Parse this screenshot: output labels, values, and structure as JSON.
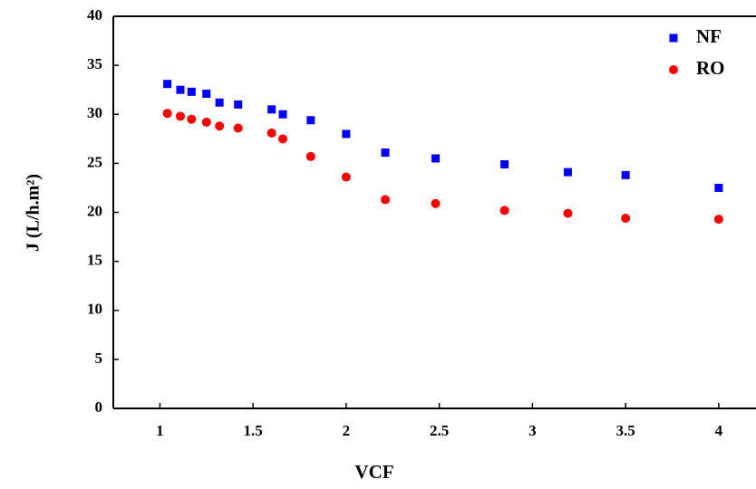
{
  "chart_data": {
    "type": "scatter",
    "x_label": "VCF",
    "y_label": "J (L/h.m²)",
    "x": [
      1.04,
      1.11,
      1.17,
      1.25,
      1.32,
      1.42,
      1.6,
      1.66,
      1.81,
      2.0,
      2.21,
      2.48,
      2.85,
      3.19,
      3.5,
      4.0
    ],
    "series": [
      {
        "name": "NF",
        "color": "#0000ff",
        "marker": "square",
        "values": [
          33.1,
          32.5,
          32.3,
          32.1,
          31.2,
          31.0,
          30.5,
          30.0,
          29.4,
          28.0,
          26.1,
          25.5,
          24.9,
          24.1,
          23.8,
          22.5
        ]
      },
      {
        "name": "RO",
        "color": "#ff0000",
        "marker": "circle",
        "values": [
          30.1,
          29.8,
          29.5,
          29.2,
          28.8,
          28.6,
          28.1,
          27.5,
          25.7,
          23.6,
          21.3,
          20.9,
          20.2,
          19.9,
          19.4,
          19.3
        ]
      }
    ],
    "xlim": [
      0.75,
      4.2
    ],
    "ylim": [
      0,
      40
    ],
    "xticks": [
      1,
      1.5,
      2,
      2.5,
      3,
      3.5,
      4
    ],
    "yticks": [
      0,
      5,
      10,
      15,
      20,
      25,
      30,
      35,
      40
    ],
    "legend": "upper right",
    "grid": false
  }
}
